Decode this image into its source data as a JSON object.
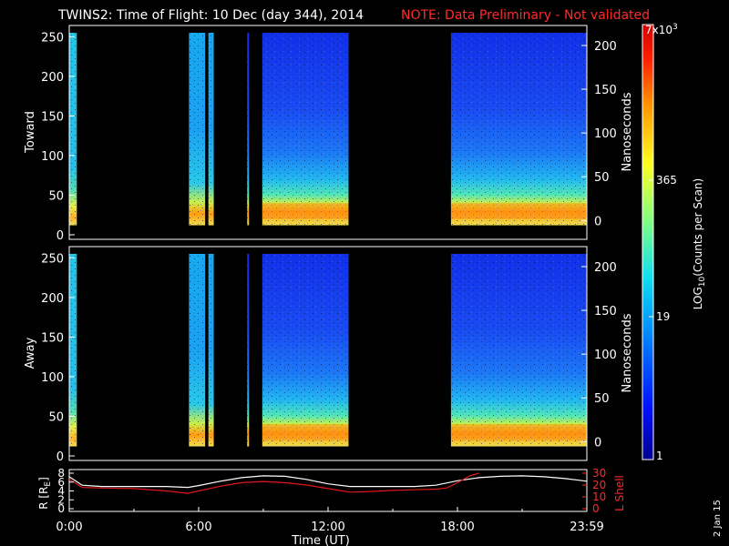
{
  "header": {
    "title": "TWINS2: Time of Flight: 10 Dec (day 344), 2014",
    "note": "NOTE: Data Preliminary - Not validated"
  },
  "stamp": "2 Jan 15",
  "colors": {
    "line_white": "#ffffff",
    "line_red": "#e01818",
    "note_red": "#ff2a2a"
  },
  "chart_data": [
    {
      "type": "heatmap",
      "name": "Toward",
      "ylabel": "Toward",
      "ylim": [
        0,
        255
      ],
      "y_ticks": [
        "0",
        "50",
        "100",
        "150",
        "200",
        "250"
      ],
      "right_label": "Nanoseconds",
      "right_ticks": [
        "0",
        "50",
        "100",
        "150",
        "200"
      ],
      "data_intervals_hours": [
        [
          0.0,
          0.35
        ],
        [
          5.55,
          6.3
        ],
        [
          6.45,
          6.7
        ],
        [
          8.25,
          8.3
        ],
        [
          8.95,
          12.95
        ],
        [
          17.7,
          24.0
        ]
      ],
      "peak_band_y": [
        20,
        40
      ]
    },
    {
      "type": "heatmap",
      "name": "Away",
      "ylabel": "Away",
      "ylim": [
        0,
        255
      ],
      "y_ticks": [
        "0",
        "50",
        "100",
        "150",
        "200",
        "250"
      ],
      "right_label": "Nanoseconds",
      "right_ticks": [
        "0",
        "50",
        "100",
        "150",
        "200"
      ],
      "data_intervals_hours": [
        [
          0.0,
          0.35
        ],
        [
          5.55,
          6.3
        ],
        [
          6.45,
          6.7
        ],
        [
          8.25,
          8.3
        ],
        [
          8.95,
          12.95
        ],
        [
          17.7,
          24.0
        ]
      ],
      "peak_band_y": [
        20,
        40
      ]
    },
    {
      "type": "line",
      "xlabel": "Time (UT)",
      "x_ticks": [
        "0:00",
        "6:00",
        "12:00",
        "18:00",
        "23:59"
      ],
      "xlim": [
        0,
        24
      ],
      "ylabel": "R [R_E]",
      "ylabel_main": "R [R",
      "ylabel_sub": "E",
      "ylabel_end": "]",
      "ylim": [
        0,
        8
      ],
      "y_ticks": [
        "0",
        "2",
        "4",
        "6",
        "8"
      ],
      "ylabel_right": "L Shell",
      "ylim_right": [
        0,
        30
      ],
      "y_ticks_right": [
        "0",
        "10",
        "20",
        "30"
      ],
      "series": [
        {
          "name": "R [RE]",
          "color": "#ffffff",
          "x": [
            0,
            0.6,
            1.5,
            3,
            4.5,
            5.5,
            6,
            7,
            8,
            9,
            10,
            11,
            12,
            13,
            14,
            15,
            16,
            17,
            18,
            19,
            20,
            21,
            22,
            23,
            24
          ],
          "y": [
            7.2,
            5.3,
            5.0,
            5.0,
            5.0,
            4.8,
            5.2,
            6.2,
            7.0,
            7.4,
            7.3,
            6.6,
            5.6,
            5.0,
            5.0,
            5.0,
            5.0,
            5.3,
            6.3,
            7.0,
            7.3,
            7.4,
            7.2,
            6.8,
            6.2
          ]
        },
        {
          "name": "L Shell",
          "color": "#e01818",
          "x": [
            0,
            0.6,
            1.5,
            3,
            4.5,
            5.5,
            6,
            7,
            8,
            9,
            10,
            11,
            12,
            13,
            14,
            15,
            16,
            17,
            17.5,
            18,
            18.6,
            19.0
          ],
          "y": [
            25,
            18,
            17.5,
            17,
            15,
            13,
            15,
            19,
            22,
            23,
            22,
            20,
            17,
            14,
            14.5,
            15.5,
            16,
            16.5,
            17.5,
            22,
            28,
            30
          ]
        }
      ]
    }
  ],
  "colorbar": {
    "label": "LOG10(Counts per Scan)",
    "label_main": "LOG",
    "label_sub": "10",
    "label_end": "(Counts per Scan)",
    "top_main": "7x10",
    "top_sup": "3",
    "ticks": [
      "365",
      "19",
      "1"
    ]
  }
}
